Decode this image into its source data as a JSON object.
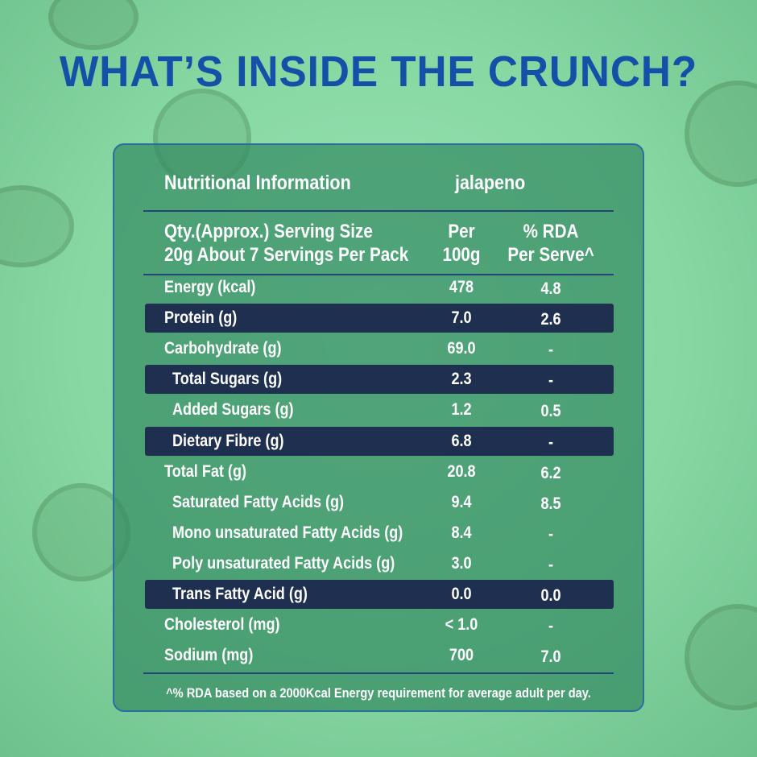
{
  "title": "WHAT’S INSIDE THE CRUNCH?",
  "table": {
    "heading": "Nutritional Information",
    "variant": "jalapeno",
    "columns": {
      "serving_line1": "Qty.(Approx.) Serving Size",
      "serving_line2": "20g About 7 Servings Per Pack",
      "per_line1": "Per",
      "per_line2": "100g",
      "rda_line1": "% RDA",
      "rda_line2": "Per Serve^"
    },
    "rows": [
      [
        "Energy (kcal)",
        "478",
        "4.8"
      ],
      [
        "Protein (g)",
        "7.0",
        "2.6"
      ],
      [
        "Carbohydrate (g)",
        "69.0",
        "-"
      ],
      [
        "Total Sugars (g)",
        "2.3",
        "-"
      ],
      [
        "Added Sugars (g)",
        "1.2",
        "0.5"
      ],
      [
        "Dietary Fibre (g)",
        "6.8",
        "-"
      ],
      [
        "Total Fat (g)",
        "20.8",
        "6.2"
      ],
      [
        "Saturated Fatty Acids (g)",
        "9.4",
        "8.5"
      ],
      [
        "Mono unsaturated Fatty Acids (g)",
        "8.4",
        "-"
      ],
      [
        "Poly unsaturated Fatty Acids (g)",
        "3.0",
        "-"
      ],
      [
        "Trans Fatty Acid (g)",
        "0.0",
        "0.0"
      ],
      [
        "Cholesterol (mg)",
        "< 1.0",
        "-"
      ],
      [
        "Sodium (mg)",
        "700",
        "7.0"
      ]
    ],
    "footnote": "^% RDA based on a 2000Kcal Energy requirement for average adult per day."
  }
}
